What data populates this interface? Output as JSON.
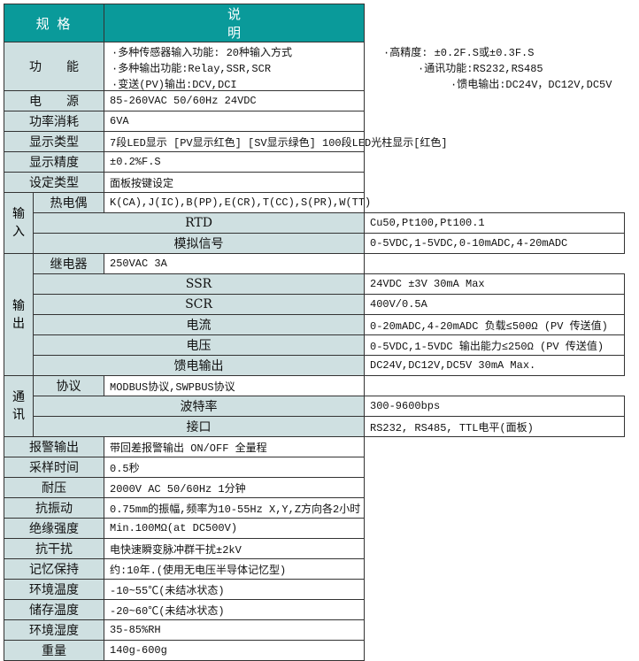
{
  "header": {
    "spec": "规 格",
    "desc": "说明"
  },
  "function": {
    "label": "功能",
    "lines": [
      "·多种传感器输入功能: 20种输入方式",
      "·高精度: ±0.2F.S或±0.3F.S",
      "·多种输出功能:Relay,SSR,SCR",
      "·通讯功能:RS232,RS485",
      "·变送(PV)输出:DCV,DCI",
      "·馈电输出:DC24V，DC12V,DC5V"
    ]
  },
  "rows_top": [
    {
      "label": "电源",
      "value": "85-260VAC    50/60Hz        24VDC"
    },
    {
      "label": "功率消耗",
      "value": "6VA"
    },
    {
      "label": "显示类型",
      "value": "7段LED显示 [PV显示红色] [SV显示绿色]  100段LED光柱显示[红色]"
    },
    {
      "label": "显示精度",
      "value": "±0.2%F.S"
    },
    {
      "label": "设定类型",
      "value": "面板按键设定"
    }
  ],
  "groups": [
    {
      "label": "输入",
      "rows": [
        {
          "label": "热电偶",
          "value": "K(CA),J(IC),B(PP),E(CR),T(CC),S(PR),W(TT)"
        },
        {
          "label": "RTD",
          "value": "Cu50,Pt100,Pt100.1"
        },
        {
          "label": "模拟信号",
          "value": "0-5VDC,1-5VDC,0-10mADC,4-20mADC"
        }
      ]
    },
    {
      "label": "输出",
      "rows": [
        {
          "label": "继电器",
          "value": "250VAC  3A"
        },
        {
          "label": "SSR",
          "value": "24VDC ±3V 30mA Max"
        },
        {
          "label": "SCR",
          "value": "400V/0.5A"
        },
        {
          "label": "电流",
          "value": "0-20mADC,4-20mADC 负载≤500Ω (PV 传送值)"
        },
        {
          "label": "电压",
          "value": "0-5VDC,1-5VDC 输出能力≤250Ω (PV 传送值)"
        },
        {
          "label": "馈电输出",
          "value": "DC24V,DC12V,DC5V  30mA Max."
        }
      ]
    },
    {
      "label": "通讯",
      "rows": [
        {
          "label": "协议",
          "value": "MODBUS协议,SWPBUS协议"
        },
        {
          "label": "波特率",
          "value": "300-9600bps"
        },
        {
          "label": "接口",
          "value": "RS232, RS485, TTL电平(面板)"
        }
      ]
    }
  ],
  "rows_bottom": [
    {
      "label": "报警输出",
      "value": "带回差报警输出     ON/OFF 全量程"
    },
    {
      "label": "采样时间",
      "value": "0.5秒"
    },
    {
      "label": "耐压",
      "value": "2000V AC   50/60Hz   1分钟"
    },
    {
      "label": "抗振动",
      "value": "0.75mm的振幅,频率为10-55Hz X,Y,Z方向各2小时"
    },
    {
      "label": "绝缘强度",
      "value": "Min.100MΩ(at   DC500V)"
    },
    {
      "label": "抗干扰",
      "value": "电快速瞬变脉冲群干扰±2kV"
    },
    {
      "label": "记忆保持",
      "value": "约:10年.(使用无电压半导体记忆型)"
    },
    {
      "label": "环境温度",
      "value": "-10~55℃(未结冰状态)"
    },
    {
      "label": "储存温度",
      "value": "-20~60℃(未结冰状态)"
    },
    {
      "label": "环境湿度",
      "value": "35-85%RH"
    },
    {
      "label": "重量",
      "value": "140g-600g"
    }
  ],
  "colors": {
    "header": "#0a9a9a",
    "label_bg": "#cfe0e1"
  }
}
